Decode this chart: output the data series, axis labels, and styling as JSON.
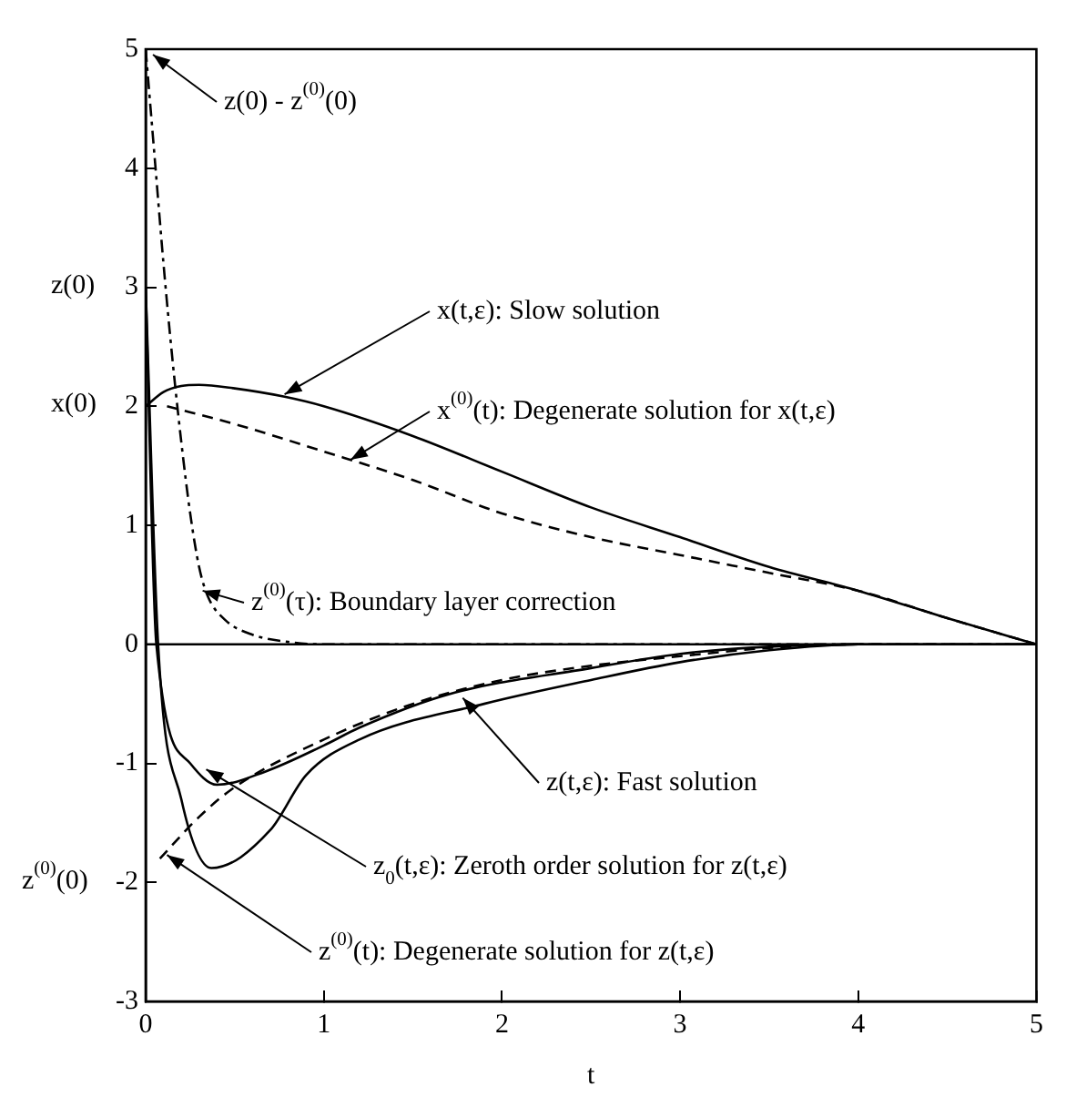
{
  "chart_data": {
    "type": "line",
    "xlabel": "t",
    "xlim": [
      0,
      5
    ],
    "xticks": [
      0,
      1,
      2,
      3,
      4,
      5
    ],
    "ylim": [
      -3,
      5
    ],
    "yticks": [
      -3,
      -2,
      -1,
      0,
      1,
      2,
      3,
      4,
      5
    ],
    "grid": false,
    "legend": false,
    "marker": "none",
    "ref_lines": [
      {
        "axis": "y",
        "value": 0,
        "color": "#000000",
        "line_style": "solid"
      }
    ],
    "series": [
      {
        "color": "#000000",
        "line_style": "solid",
        "x": [
          0,
          0.1,
          0.2,
          0.3,
          0.5,
          0.78,
          1,
          1.5,
          2,
          2.5,
          3,
          3.5,
          4,
          4.5,
          5
        ],
        "values": [
          2,
          2.12,
          2.17,
          2.18,
          2.15,
          2.08,
          2,
          1.75,
          1.45,
          1.15,
          0.9,
          0.65,
          0.45,
          0.22,
          0
        ]
      },
      {
        "color": "#000000",
        "line_style": "dashed",
        "x": [
          0.12,
          0.5,
          1,
          1.5,
          2,
          2.5,
          3,
          3.5,
          4,
          4.5,
          5
        ],
        "values": [
          2,
          1.85,
          1.62,
          1.38,
          1.1,
          0.9,
          0.75,
          0.6,
          0.45,
          0.22,
          0
        ]
      },
      {
        "color": "#000000",
        "line_style": "dotted",
        "x": [
          0,
          0.05,
          0.1,
          0.15,
          0.2,
          0.25,
          0.3,
          0.35,
          0.45,
          0.6,
          0.8,
          1,
          5
        ],
        "values": [
          5,
          4.1,
          3.2,
          2.4,
          1.7,
          1.1,
          0.65,
          0.4,
          0.2,
          0.08,
          0.02,
          0,
          0
        ]
      },
      {
        "color": "#000000",
        "line_style": "solid",
        "x": [
          0,
          0.07,
          0.2,
          0.37,
          0.7,
          0.9,
          1.2,
          1.9,
          2.5,
          3,
          3.5,
          4,
          5
        ],
        "values": [
          3,
          0,
          -1.3,
          -1.88,
          -1.56,
          -1.1,
          -0.8,
          -0.5,
          -0.3,
          -0.15,
          -0.05,
          0,
          0
        ]
      },
      {
        "color": "#000000",
        "line_style": "solid",
        "x": [
          0,
          0.06,
          0.25,
          0.4,
          0.67,
          1,
          1.2,
          1.7,
          2.5,
          3,
          3.5,
          4
        ],
        "values": [
          3,
          0,
          -1,
          -1.18,
          -1.07,
          -0.85,
          -0.7,
          -0.42,
          -0.2,
          -0.08,
          -0.02,
          0
        ]
      },
      {
        "color": "#000000",
        "line_style": "dashed",
        "x": [
          0.08,
          0.3,
          0.5,
          1,
          1.5,
          2,
          2.5,
          3,
          3.5,
          4,
          5
        ],
        "values": [
          -1.8,
          -1.45,
          -1.2,
          -0.8,
          -0.5,
          -0.3,
          -0.18,
          -0.1,
          -0.03,
          0,
          0
        ]
      }
    ],
    "annotations": [
      "z(0)",
      "x(0)",
      "z$^{(0)}$(0)",
      {
        "text": "z(0) - z$^{(0)}$(0)",
        "x": 0,
        "y": 5
      },
      {
        "text": "x(t,ε): Slow solution",
        "x": 0.78,
        "y": 2.1
      },
      {
        "text": "x$^{(0)}$(t): Degenerate solution for x(t,ε)",
        "x": 1.15,
        "y": 1.55
      },
      {
        "text": "z$^{(0)}$(τ): Boundary layer correction",
        "x": 0.32,
        "y": 0.45
      },
      {
        "text": "z(t,ε): Fast solution",
        "x": 1.78,
        "y": -0.45
      },
      {
        "text": "z$_{0}$(t,ε): Zeroth order solution for z(t,ε)",
        "x": 0.34,
        "y": -1.05
      },
      {
        "text": "z$^{(0)}$(t): Degenerate solution for z(t,ε)",
        "x": 0.12,
        "y": -1.77
      }
    ]
  }
}
